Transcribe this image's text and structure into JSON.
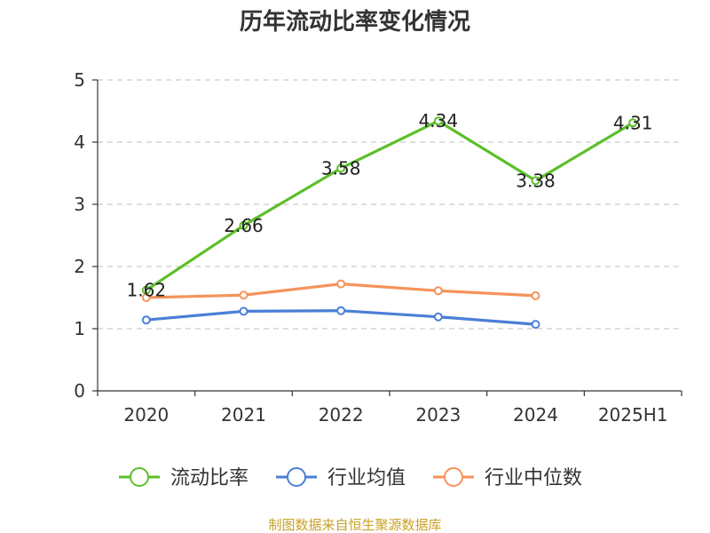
{
  "chart_data": {
    "type": "line",
    "title": "历年流动比率变化情况",
    "categories": [
      "2020",
      "2021",
      "2022",
      "2023",
      "2024",
      "2025H1"
    ],
    "ylim": [
      0,
      5
    ],
    "yticks": [
      "0",
      "1",
      "2",
      "3",
      "4",
      "5"
    ],
    "grid": true,
    "legend_position": "bottom",
    "series": [
      {
        "name": "流动比率",
        "color": "#5cbf2a",
        "values": [
          1.62,
          2.66,
          3.58,
          4.34,
          3.38,
          4.31
        ],
        "labels": [
          "1.62",
          "2.66",
          "3.58",
          "4.34",
          "3.38",
          "4.31"
        ]
      },
      {
        "name": "行业均值",
        "color": "#4a7fd6",
        "values": [
          1.14,
          1.28,
          1.29,
          1.19,
          1.07,
          null
        ]
      },
      {
        "name": "行业中位数",
        "color": "#f5935a",
        "values": [
          1.5,
          1.54,
          1.72,
          1.61,
          1.53,
          null
        ]
      }
    ]
  },
  "source": "制图数据来自恒生聚源数据库"
}
